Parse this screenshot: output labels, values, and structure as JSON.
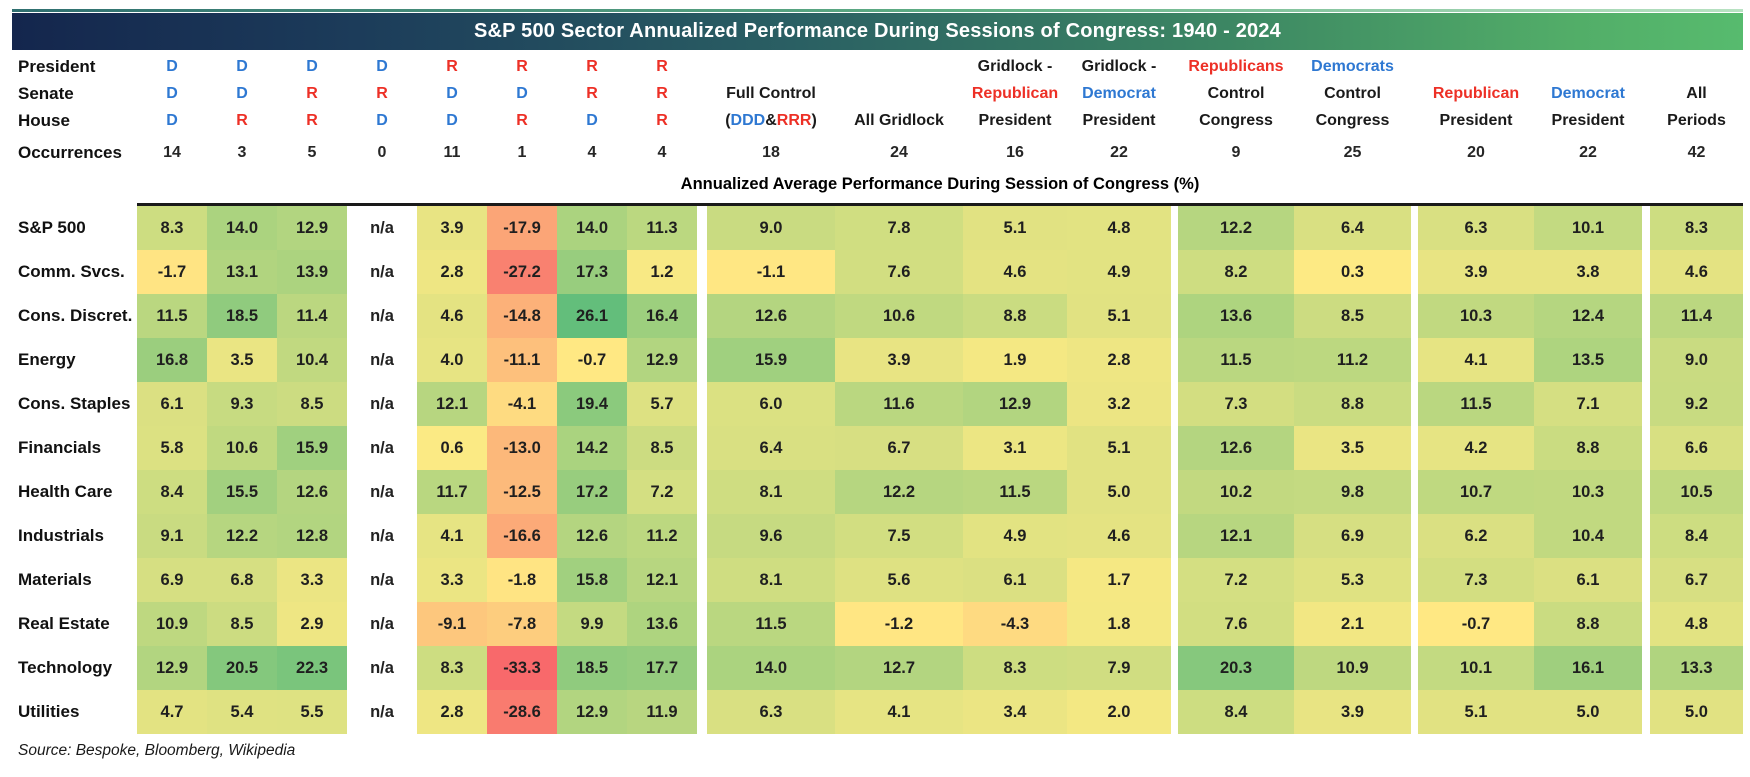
{
  "title": "S&P 500 Sector Annualized Performance During Sessions of Congress: 1940 - 2024",
  "subtitle": "Annualized Average Performance During Session of Congress (%)",
  "source": "Source: Bespoke, Bloomberg, Wikipedia",
  "labels": {
    "president": "President",
    "senate": "Senate",
    "house": "House",
    "occurrences": "Occurrences"
  },
  "colors": {
    "dem": "#2E78D2",
    "rep": "#ED3026",
    "text": "#1A1A1A",
    "scale": {
      "min_color": "#F8696B",
      "mid_color": "#FFEB84",
      "max_color": "#63BE7B",
      "min_value": -33.3,
      "mid_value": 0,
      "max_value": 26.1
    }
  },
  "chart_data": {
    "type": "heatmap",
    "title": "S&P 500 Sector Annualized Performance During Sessions of Congress: 1940 - 2024",
    "value_label": "Annualized Average Performance During Session of Congress (%)",
    "legend_note": "Cells colored on red-yellow-green scale from -33.3 to 26.1",
    "columns": [
      {
        "id": "D-D-D",
        "occurrences": "14",
        "header": {
          "president": [
            {
              "t": "D",
              "c": "d"
            }
          ],
          "senate": [
            {
              "t": "D",
              "c": "d"
            }
          ],
          "house": [
            {
              "t": "D",
              "c": "d"
            }
          ]
        }
      },
      {
        "id": "D-D-R",
        "occurrences": "3",
        "header": {
          "president": [
            {
              "t": "D",
              "c": "d"
            }
          ],
          "senate": [
            {
              "t": "D",
              "c": "d"
            }
          ],
          "house": [
            {
              "t": "R",
              "c": "r"
            }
          ]
        }
      },
      {
        "id": "D-R-R",
        "occurrences": "5",
        "header": {
          "president": [
            {
              "t": "D",
              "c": "d"
            }
          ],
          "senate": [
            {
              "t": "R",
              "c": "r"
            }
          ],
          "house": [
            {
              "t": "R",
              "c": "r"
            }
          ]
        }
      },
      {
        "id": "D-R-D",
        "occurrences": "0",
        "header": {
          "president": [
            {
              "t": "D",
              "c": "d"
            }
          ],
          "senate": [
            {
              "t": "R",
              "c": "r"
            }
          ],
          "house": [
            {
              "t": "D",
              "c": "d"
            }
          ]
        }
      },
      {
        "id": "R-D-D",
        "occurrences": "11",
        "header": {
          "president": [
            {
              "t": "R",
              "c": "r"
            }
          ],
          "senate": [
            {
              "t": "D",
              "c": "d"
            }
          ],
          "house": [
            {
              "t": "D",
              "c": "d"
            }
          ]
        }
      },
      {
        "id": "R-D-R",
        "occurrences": "1",
        "header": {
          "president": [
            {
              "t": "R",
              "c": "r"
            }
          ],
          "senate": [
            {
              "t": "D",
              "c": "d"
            }
          ],
          "house": [
            {
              "t": "R",
              "c": "r"
            }
          ]
        }
      },
      {
        "id": "R-R-D",
        "occurrences": "4",
        "header": {
          "president": [
            {
              "t": "R",
              "c": "r"
            }
          ],
          "senate": [
            {
              "t": "R",
              "c": "r"
            }
          ],
          "house": [
            {
              "t": "D",
              "c": "d"
            }
          ]
        }
      },
      {
        "id": "R-R-R",
        "occurrences": "4",
        "header": {
          "president": [
            {
              "t": "R",
              "c": "r"
            }
          ],
          "senate": [
            {
              "t": "R",
              "c": "r"
            }
          ],
          "house": [
            {
              "t": "R",
              "c": "r"
            }
          ]
        }
      },
      {
        "id": "full-control",
        "occurrences": "18",
        "header": {
          "senate": [
            {
              "t": "Full Control",
              "c": "k"
            }
          ],
          "house": [
            {
              "t": "(",
              "c": "k"
            },
            {
              "t": "DDD",
              "c": "d"
            },
            {
              "t": " & ",
              "c": "k"
            },
            {
              "t": "RRR",
              "c": "r"
            },
            {
              "t": ")",
              "c": "k"
            }
          ]
        }
      },
      {
        "id": "all-gridlock",
        "occurrences": "24",
        "header": {
          "house": [
            {
              "t": "All Gridlock",
              "c": "k"
            }
          ]
        }
      },
      {
        "id": "gridlock-republican-president",
        "occurrences": "16",
        "header": {
          "president": [
            {
              "t": "Gridlock -",
              "c": "k"
            }
          ],
          "senate": [
            {
              "t": "Republican",
              "c": "r"
            }
          ],
          "house": [
            {
              "t": "President",
              "c": "k"
            }
          ]
        }
      },
      {
        "id": "gridlock-democrat-president",
        "occurrences": "22",
        "header": {
          "president": [
            {
              "t": "Gridlock -",
              "c": "k"
            }
          ],
          "senate": [
            {
              "t": "Democrat",
              "c": "d"
            }
          ],
          "house": [
            {
              "t": "President",
              "c": "k"
            }
          ]
        }
      },
      {
        "id": "republicans-control-congress",
        "occurrences": "9",
        "header": {
          "president": [
            {
              "t": "Republicans",
              "c": "r"
            }
          ],
          "senate": [
            {
              "t": "Control",
              "c": "k"
            }
          ],
          "house": [
            {
              "t": "Congress",
              "c": "k"
            }
          ]
        }
      },
      {
        "id": "democrats-control-congress",
        "occurrences": "25",
        "header": {
          "president": [
            {
              "t": "Democrats",
              "c": "d"
            }
          ],
          "senate": [
            {
              "t": "Control",
              "c": "k"
            }
          ],
          "house": [
            {
              "t": "Congress",
              "c": "k"
            }
          ]
        }
      },
      {
        "id": "republican-president",
        "occurrences": "20",
        "header": {
          "senate": [
            {
              "t": "Republican",
              "c": "r"
            }
          ],
          "house": [
            {
              "t": "President",
              "c": "k"
            }
          ]
        }
      },
      {
        "id": "democrat-president",
        "occurrences": "22",
        "header": {
          "senate": [
            {
              "t": "Democrat",
              "c": "d"
            }
          ],
          "house": [
            {
              "t": "President",
              "c": "k"
            }
          ]
        }
      },
      {
        "id": "all-periods",
        "occurrences": "42",
        "header": {
          "senate": [
            {
              "t": "All",
              "c": "k"
            }
          ],
          "house": [
            {
              "t": "Periods",
              "c": "k"
            }
          ]
        }
      }
    ],
    "rows": [
      {
        "label": "S&P 500",
        "values": [
          "8.3",
          "14.0",
          "12.9",
          "n/a",
          "3.9",
          "-17.9",
          "14.0",
          "11.3",
          "9.0",
          "7.8",
          "5.1",
          "4.8",
          "12.2",
          "6.4",
          "6.3",
          "10.1",
          "8.3"
        ]
      },
      {
        "label": "Comm. Svcs.",
        "values": [
          "-1.7",
          "13.1",
          "13.9",
          "n/a",
          "2.8",
          "-27.2",
          "17.3",
          "1.2",
          "-1.1",
          "7.6",
          "4.6",
          "4.9",
          "8.2",
          "0.3",
          "3.9",
          "3.8",
          "4.6"
        ]
      },
      {
        "label": "Cons. Discret.",
        "values": [
          "11.5",
          "18.5",
          "11.4",
          "n/a",
          "4.6",
          "-14.8",
          "26.1",
          "16.4",
          "12.6",
          "10.6",
          "8.8",
          "5.1",
          "13.6",
          "8.5",
          "10.3",
          "12.4",
          "11.4"
        ]
      },
      {
        "label": "Energy",
        "values": [
          "16.8",
          "3.5",
          "10.4",
          "n/a",
          "4.0",
          "-11.1",
          "-0.7",
          "12.9",
          "15.9",
          "3.9",
          "1.9",
          "2.8",
          "11.5",
          "11.2",
          "4.1",
          "13.5",
          "9.0"
        ]
      },
      {
        "label": "Cons. Staples",
        "values": [
          "6.1",
          "9.3",
          "8.5",
          "n/a",
          "12.1",
          "-4.1",
          "19.4",
          "5.7",
          "6.0",
          "11.6",
          "12.9",
          "3.2",
          "7.3",
          "8.8",
          "11.5",
          "7.1",
          "9.2"
        ]
      },
      {
        "label": "Financials",
        "values": [
          "5.8",
          "10.6",
          "15.9",
          "n/a",
          "0.6",
          "-13.0",
          "14.2",
          "8.5",
          "6.4",
          "6.7",
          "3.1",
          "5.1",
          "12.6",
          "3.5",
          "4.2",
          "8.8",
          "6.6"
        ]
      },
      {
        "label": "Health Care",
        "values": [
          "8.4",
          "15.5",
          "12.6",
          "n/a",
          "11.7",
          "-12.5",
          "17.2",
          "7.2",
          "8.1",
          "12.2",
          "11.5",
          "5.0",
          "10.2",
          "9.8",
          "10.7",
          "10.3",
          "10.5"
        ]
      },
      {
        "label": "Industrials",
        "values": [
          "9.1",
          "12.2",
          "12.8",
          "n/a",
          "4.1",
          "-16.6",
          "12.6",
          "11.2",
          "9.6",
          "7.5",
          "4.9",
          "4.6",
          "12.1",
          "6.9",
          "6.2",
          "10.4",
          "8.4"
        ]
      },
      {
        "label": "Materials",
        "values": [
          "6.9",
          "6.8",
          "3.3",
          "n/a",
          "3.3",
          "-1.8",
          "15.8",
          "12.1",
          "8.1",
          "5.6",
          "6.1",
          "1.7",
          "7.2",
          "5.3",
          "7.3",
          "6.1",
          "6.7"
        ]
      },
      {
        "label": "Real Estate",
        "values": [
          "10.9",
          "8.5",
          "2.9",
          "n/a",
          "-9.1",
          "-7.8",
          "9.9",
          "13.6",
          "11.5",
          "-1.2",
          "-4.3",
          "1.8",
          "7.6",
          "2.1",
          "-0.7",
          "8.8",
          "4.8"
        ]
      },
      {
        "label": "Technology",
        "values": [
          "12.9",
          "20.5",
          "22.3",
          "n/a",
          "8.3",
          "-33.3",
          "18.5",
          "17.7",
          "14.0",
          "12.7",
          "8.3",
          "7.9",
          "20.3",
          "10.9",
          "10.1",
          "16.1",
          "13.3"
        ]
      },
      {
        "label": "Utilities",
        "values": [
          "4.7",
          "5.4",
          "5.5",
          "n/a",
          "2.8",
          "-28.6",
          "12.9",
          "11.9",
          "6.3",
          "4.1",
          "3.4",
          "2.0",
          "8.4",
          "3.9",
          "5.1",
          "5.0",
          "5.0"
        ]
      }
    ]
  }
}
